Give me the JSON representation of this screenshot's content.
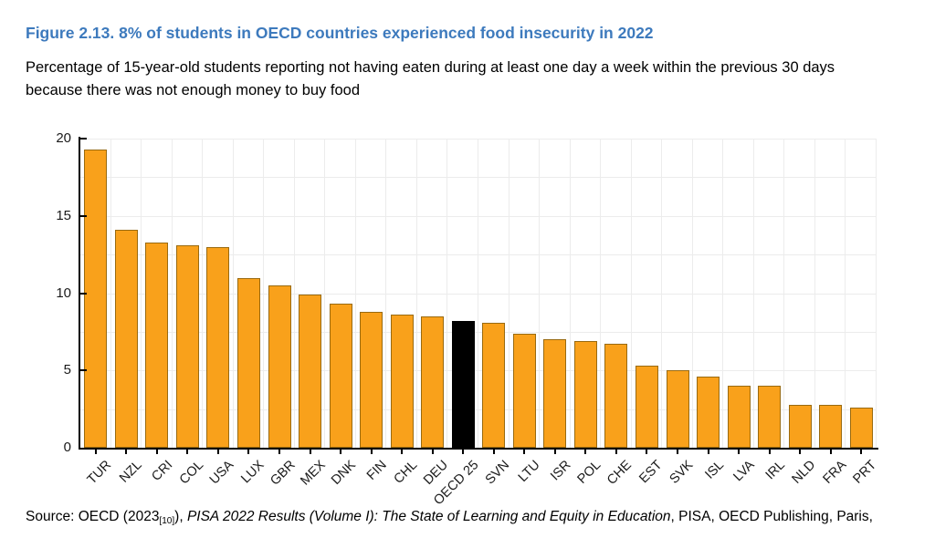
{
  "figure": {
    "title": "Figure 2.13. 8% of students in OECD countries experienced food insecurity in 2022",
    "title_color": "#3d7abd",
    "subtitle": "Percentage of 15-year-old students reporting not having eaten during at least one day a week within the previous 30 days because there was not enough money to buy food",
    "source": {
      "prefix": "Source: OECD (2023",
      "ref": "[10]",
      "mid": "), ",
      "italic": "PISA 2022 Results (Volume I): The State of Learning and Equity in Education",
      "suffix": ", PISA, OECD Publishing, Paris,"
    }
  },
  "chart_data": {
    "type": "bar",
    "title": "Figure 2.13. 8% of students in OECD countries experienced food insecurity in 2022",
    "xlabel": "",
    "ylabel": "",
    "categories": [
      "TUR",
      "NZL",
      "CRI",
      "COL",
      "USA",
      "LUX",
      "GBR",
      "MEX",
      "DNK",
      "FIN",
      "CHL",
      "DEU",
      "OECD 25",
      "SVN",
      "LTU",
      "ISR",
      "POL",
      "CHE",
      "EST",
      "SVK",
      "ISL",
      "LVA",
      "IRL",
      "NLD",
      "FRA",
      "PRT"
    ],
    "values": [
      19.3,
      14.1,
      13.3,
      13.1,
      13.0,
      11.0,
      10.5,
      9.9,
      9.3,
      8.8,
      8.6,
      8.5,
      8.2,
      8.1,
      7.4,
      7.0,
      6.9,
      6.7,
      5.3,
      5.0,
      4.6,
      4.0,
      4.0,
      2.8,
      2.8,
      2.6
    ],
    "highlight_category": "OECD 25",
    "ylim": [
      0,
      20
    ],
    "yticks": [
      0,
      5,
      10,
      15,
      20
    ],
    "grid_interval": 2.5,
    "grid_on": true,
    "legend": "none",
    "colors": {
      "bar_fill": "#f9a11b",
      "bar_border": "#996a10",
      "highlight_fill": "#000000",
      "highlight_border": "#000000",
      "grid": "#ececec",
      "axis": "#000000"
    }
  }
}
